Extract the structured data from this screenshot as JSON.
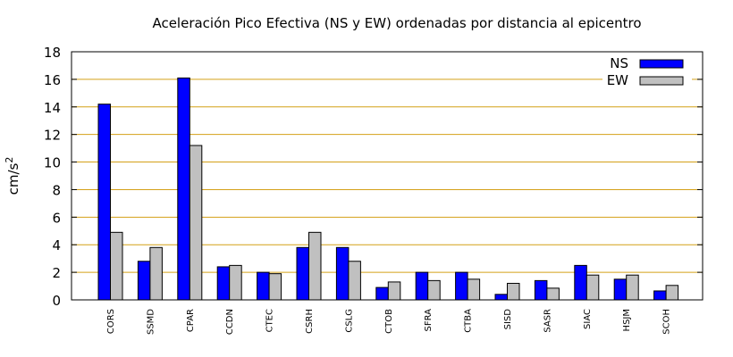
{
  "chart_data": {
    "type": "bar",
    "title": "Aceleración Pico Efectiva (NS y EW) ordenadas por distancia al epicentro",
    "xlabel": "",
    "ylabel": "cm/s",
    "ylabel_superscript": "2",
    "ylim": [
      0,
      18
    ],
    "yticks": [
      0,
      2,
      4,
      6,
      8,
      10,
      12,
      14,
      16,
      18
    ],
    "grid": true,
    "grid_color": "#d4a017",
    "legend_position": "top-right",
    "categories": [
      "CORS",
      "SSMD",
      "CPAR",
      "CCDN",
      "CTEC",
      "CSRH",
      "CSLG",
      "CTOB",
      "SFRA",
      "CTBA",
      "SISD",
      "SASR",
      "SIAC",
      "HSJM",
      "SCOH"
    ],
    "series": [
      {
        "name": "NS",
        "color": "#0000ff",
        "values": [
          14.2,
          2.8,
          16.1,
          2.4,
          2.0,
          3.8,
          3.8,
          0.9,
          2.0,
          2.0,
          0.4,
          1.4,
          2.5,
          1.5,
          0.65
        ]
      },
      {
        "name": "EW",
        "color": "#c0c0c0",
        "values": [
          4.9,
          3.8,
          11.2,
          2.5,
          1.9,
          4.9,
          2.8,
          1.3,
          1.4,
          1.5,
          1.2,
          0.85,
          1.8,
          1.8,
          1.05
        ]
      }
    ]
  }
}
